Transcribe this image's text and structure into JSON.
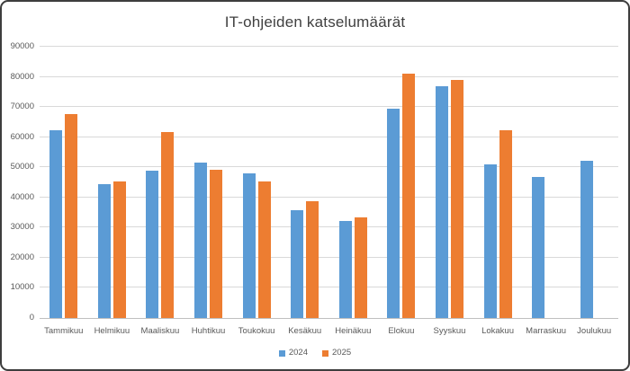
{
  "chart_data": {
    "type": "bar",
    "title": "IT-ohjeiden katselumäärät",
    "categories": [
      "Tammikuu",
      "Helmikuu",
      "Maaliskuu",
      "Huhtikuu",
      "Toukokuu",
      "Kesäkuu",
      "Heinäkuu",
      "Elokuu",
      "Syyskuu",
      "Lokakuu",
      "Marraskuu",
      "Joulukuu"
    ],
    "series": [
      {
        "name": "2024",
        "color": "#5B9BD5",
        "values": [
          62300,
          44300,
          48900,
          51500,
          48000,
          35800,
          32200,
          69500,
          76800,
          51000,
          46800,
          52200
        ]
      },
      {
        "name": "2025",
        "color": "#ED7D31",
        "values": [
          67800,
          45200,
          61600,
          49300,
          45300,
          38800,
          33500,
          81100,
          78900,
          62200,
          null,
          null
        ]
      }
    ],
    "xlabel": "",
    "ylabel": "",
    "ylim": [
      0,
      90000
    ],
    "ytick_step": 10000,
    "ytick_labels": [
      "0",
      "10000",
      "20000",
      "30000",
      "40000",
      "50000",
      "60000",
      "70000",
      "80000",
      "90000"
    ],
    "grid": true,
    "legend_position": "bottom"
  },
  "colors": {
    "gridline": "#D9D9D9",
    "axis_line": "#BFBFBF",
    "tick_text": "#595959",
    "title_text": "#404040",
    "background": "#FFFFFF",
    "frame_border": "#3D3D3D"
  }
}
